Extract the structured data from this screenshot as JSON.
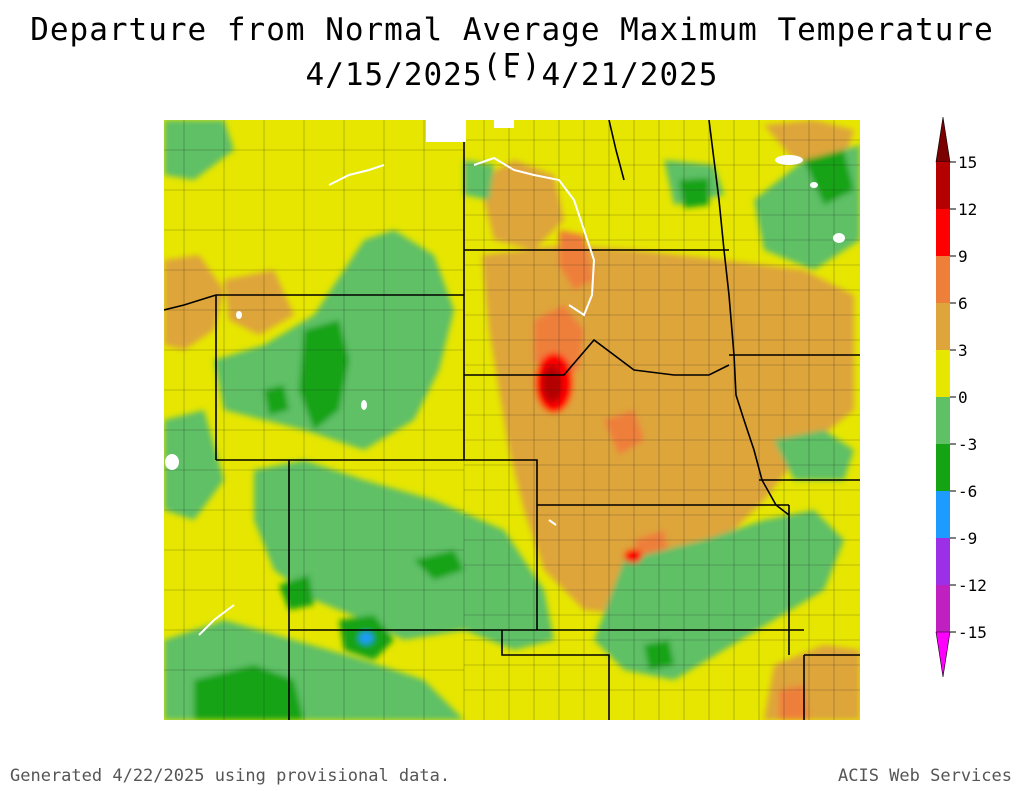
{
  "header": {
    "title": "Departure from Normal Average Maximum Temperature (F)",
    "date_range": "4/15/2025 - 4/21/2025"
  },
  "legend": {
    "ticks": [
      "15",
      "12",
      "9",
      "6",
      "3",
      "0",
      "-3",
      "-6",
      "-9",
      "-12",
      "-15"
    ],
    "bins": [
      {
        "range": "12 to 15",
        "color": "#b40000"
      },
      {
        "range": "9 to 12",
        "color": "#ff0000"
      },
      {
        "range": "6 to 9",
        "color": "#ee7f3a"
      },
      {
        "range": "3 to 6",
        "color": "#dea53b"
      },
      {
        "range": "0 to 3",
        "color": "#e6e600"
      },
      {
        "range": "-3 to 0",
        "color": "#5fc066"
      },
      {
        "range": "-6 to -3",
        "color": "#13a313"
      },
      {
        "range": "-9 to -6",
        "color": "#1e9bff"
      },
      {
        "range": "-12 to -9",
        "color": "#9b30e6"
      },
      {
        "range": "-15 to -12",
        "color": "#c020c0"
      }
    ],
    "above_color": "#7b0000",
    "below_color": "#ff00ff"
  },
  "map": {
    "base_color": "#e6e600",
    "boundary_color": "#000000"
  },
  "footer": {
    "generated": "Generated 4/22/2025 using provisional data.",
    "credit": "ACIS Web Services"
  }
}
